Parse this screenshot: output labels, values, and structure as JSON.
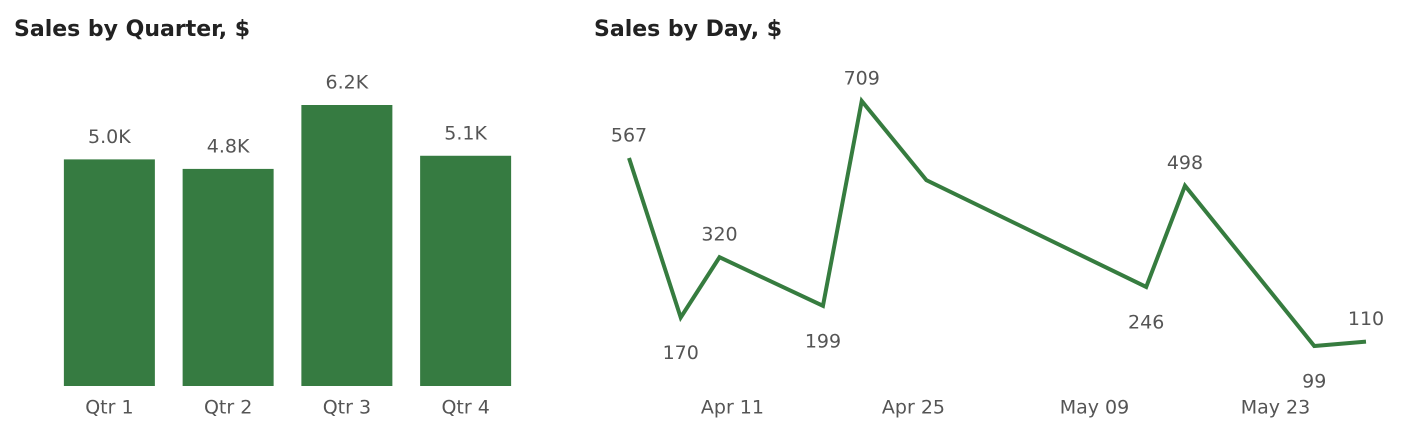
{
  "chart_data": [
    {
      "type": "bar",
      "title": "Sales by Quarter, $",
      "categories": [
        "Qtr 1",
        "Qtr 2",
        "Qtr 3",
        "Qtr 4"
      ],
      "values": [
        5000,
        4790,
        6200,
        5080
      ],
      "value_labels": [
        "5.0K",
        "4.8K",
        "6.2K",
        "5.1K"
      ],
      "color": "#367b41"
    },
    {
      "type": "line",
      "title": "Sales by Day, $",
      "x": [
        "Apr 03",
        "Apr 07",
        "Apr 10",
        "Apr 18",
        "Apr 21",
        "Apr 26",
        "May 13",
        "May 16",
        "May 26",
        "May 30"
      ],
      "values": [
        567,
        170,
        320,
        199,
        709,
        512,
        246,
        498,
        99,
        110
      ],
      "value_labels": [
        "567",
        "170",
        "320",
        "199",
        "709",
        null,
        "246",
        "498",
        "99",
        "110"
      ],
      "xlim": [
        "Apr 03",
        "May 30"
      ],
      "xticks": [
        "Apr 11",
        "Apr 25",
        "May 09",
        "May 23"
      ],
      "color": "#367c3f"
    }
  ]
}
